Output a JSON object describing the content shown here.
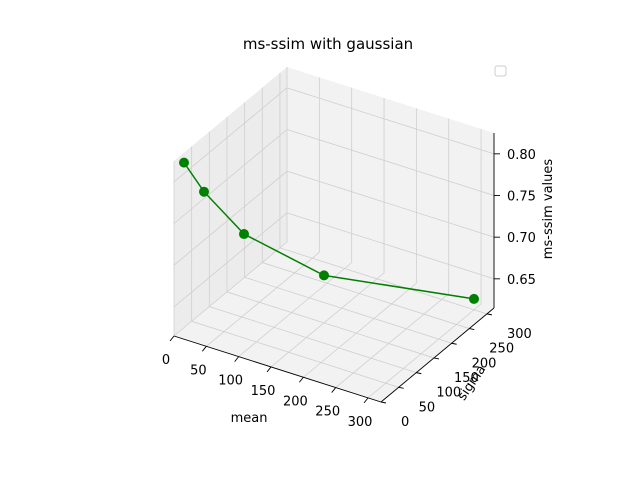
{
  "chart_data": {
    "type": "line",
    "projection": "3d",
    "title": "ms-ssim with gaussian",
    "xlabel": "mean",
    "ylabel": "sigma",
    "zlabel": "ms-ssim values",
    "xlim": [
      0,
      320
    ],
    "ylim": [
      0,
      320
    ],
    "zlim": [
      0.615,
      0.825
    ],
    "x_ticks": [
      "0",
      "50",
      "100",
      "150",
      "200",
      "250",
      "300"
    ],
    "y_ticks": [
      "0",
      "50",
      "100",
      "150",
      "200",
      "250",
      "300"
    ],
    "z_ticks": [
      "0.65",
      "0.70",
      "0.75",
      "0.80"
    ],
    "grid": true,
    "legend": "top-right (empty)",
    "series": [
      {
        "color": "#008000",
        "marker": "circle",
        "x": [
          10,
          30,
          70,
          150,
          300
        ],
        "y": [
          10,
          30,
          70,
          150,
          300
        ],
        "z": [
          0.822,
          0.785,
          0.73,
          0.672,
          0.628
        ]
      }
    ]
  }
}
